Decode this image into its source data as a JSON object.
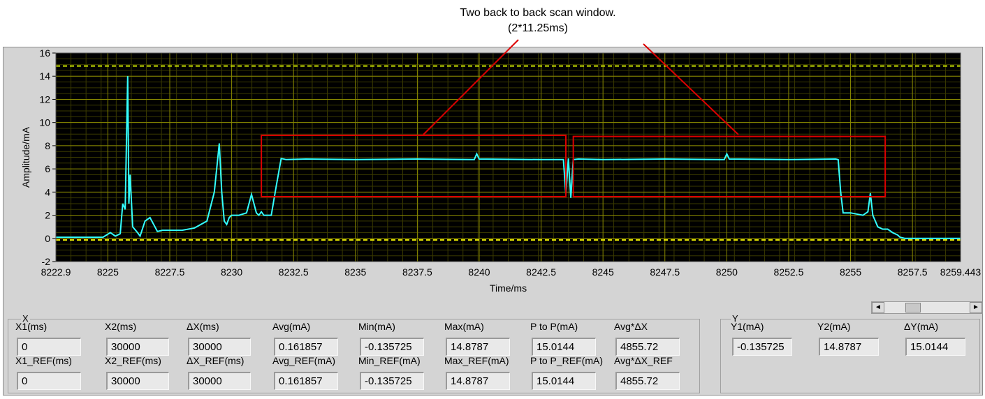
{
  "annotation": {
    "line1": "Two back to back scan window.",
    "line2": "(2*11.25ms)"
  },
  "chart_data": {
    "type": "line",
    "title": "",
    "xlabel": "Time/ms",
    "ylabel": "Amplitude/mA",
    "xlim": [
      8222.9,
      8259.443
    ],
    "ylim": [
      -2,
      16
    ],
    "x_ticks": [
      "8222.9",
      "8225",
      "8227.5",
      "8230",
      "8232.5",
      "8235",
      "8237.5",
      "8240",
      "8242.5",
      "8245",
      "8247.5",
      "8250",
      "8252.5",
      "8255",
      "8257.5",
      "8259.443"
    ],
    "y_ticks": [
      "-2",
      "0",
      "2",
      "4",
      "6",
      "8",
      "10",
      "12",
      "14",
      "16"
    ],
    "grid": true,
    "cursor_lines": [
      {
        "name": "Y2",
        "y": 14.8787,
        "color": "#c8e000"
      },
      {
        "name": "Y1",
        "y": -0.135725,
        "color": "#e6e600"
      }
    ],
    "series": [
      {
        "color": "#33ffff",
        "x": [
          8222.9,
          8224.0,
          8224.8,
          8225.1,
          8225.3,
          8225.5,
          8225.6,
          8225.7,
          8225.8,
          8225.85,
          8225.9,
          8226.0,
          8226.2,
          8226.3,
          8226.5,
          8226.7,
          8226.9,
          8227.0,
          8227.2,
          8227.5,
          8228.0,
          8228.5,
          8229.0,
          8229.3,
          8229.5,
          8229.6,
          8229.7,
          8229.8,
          8229.9,
          8230.0,
          8230.3,
          8230.6,
          8230.8,
          8231.0,
          8231.1,
          8231.2,
          8231.3,
          8231.6,
          8231.8,
          8232.0,
          8232.2,
          8233.0,
          8235.0,
          8237.5,
          8239.8,
          8239.9,
          8240.0,
          8242.5,
          8243.4,
          8243.5,
          8243.6,
          8243.7,
          8243.8,
          8244.0,
          8245.0,
          8247.5,
          8249.9,
          8250.0,
          8250.1,
          8252.5,
          8254.4,
          8254.5,
          8254.6,
          8254.7,
          8255.0,
          8255.5,
          8255.7,
          8255.8,
          8255.9,
          8256.0,
          8256.1,
          8256.3,
          8256.5,
          8256.7,
          8256.9,
          8257.0,
          8257.2,
          8257.5,
          8258.0,
          8259.443
        ],
        "y": [
          0.1,
          0.1,
          0.1,
          0.5,
          0.2,
          0.4,
          3.0,
          2.5,
          14.0,
          3.0,
          5.5,
          1.0,
          0.5,
          0.2,
          1.5,
          1.8,
          1.0,
          0.6,
          0.7,
          0.7,
          0.7,
          0.9,
          1.5,
          4.0,
          8.2,
          4.0,
          1.5,
          1.2,
          1.8,
          2.0,
          2.0,
          2.2,
          3.8,
          2.2,
          2.0,
          2.3,
          2.0,
          2.0,
          4.5,
          6.9,
          6.8,
          6.85,
          6.8,
          6.85,
          6.8,
          7.3,
          6.85,
          6.8,
          6.8,
          3.8,
          6.9,
          3.5,
          6.8,
          6.85,
          6.8,
          6.85,
          6.8,
          7.3,
          6.85,
          6.8,
          6.85,
          6.8,
          4.0,
          2.2,
          2.2,
          2.0,
          2.3,
          3.9,
          2.0,
          1.5,
          1.0,
          0.8,
          0.8,
          0.5,
          0.3,
          0.1,
          0.0,
          0.0,
          0.0,
          0.0
        ]
      }
    ],
    "highlight_boxes": [
      {
        "x": [
          8231.2,
          8243.5
        ],
        "y": [
          3.6,
          8.9
        ],
        "color": "#dd0000"
      },
      {
        "x": [
          8243.8,
          8256.4
        ],
        "y": [
          3.6,
          8.8
        ],
        "color": "#dd0000"
      }
    ]
  },
  "scrollbar": {
    "left_arrow": "◄",
    "right_arrow": "►"
  },
  "cursor_group": {
    "label": "X",
    "fields": [
      {
        "label": "X1(ms)",
        "value": "0"
      },
      {
        "label": "X2(ms)",
        "value": "30000"
      },
      {
        "label": "ΔX(ms)",
        "value": "30000"
      },
      {
        "label": "Avg(mA)",
        "value": "0.161857"
      },
      {
        "label": "Min(mA)",
        "value": "-0.135725"
      },
      {
        "label": "Max(mA)",
        "value": "14.8787"
      },
      {
        "label": "P to P(mA)",
        "value": "15.0144"
      },
      {
        "label": "Avg*ΔX",
        "value": "4855.72"
      }
    ],
    "ref_fields": [
      {
        "label": "X1_REF(ms)",
        "value": "0"
      },
      {
        "label": "X2_REF(ms)",
        "value": "30000"
      },
      {
        "label": "ΔX_REF(ms)",
        "value": "30000"
      },
      {
        "label": "Avg_REF(mA)",
        "value": "0.161857"
      },
      {
        "label": "Min_REF(mA)",
        "value": "-0.135725"
      },
      {
        "label": "Max_REF(mA)",
        "value": "14.8787"
      },
      {
        "label": "P to P_REF(mA)",
        "value": "15.0144"
      },
      {
        "label": "Avg*ΔX_REF",
        "value": "4855.72"
      }
    ]
  },
  "y_group": {
    "label": "Y",
    "fields": [
      {
        "label": "Y1(mA)",
        "value": "-0.135725"
      },
      {
        "label": "Y2(mA)",
        "value": "14.8787"
      },
      {
        "label": "ΔY(mA)",
        "value": "15.0144"
      }
    ]
  }
}
